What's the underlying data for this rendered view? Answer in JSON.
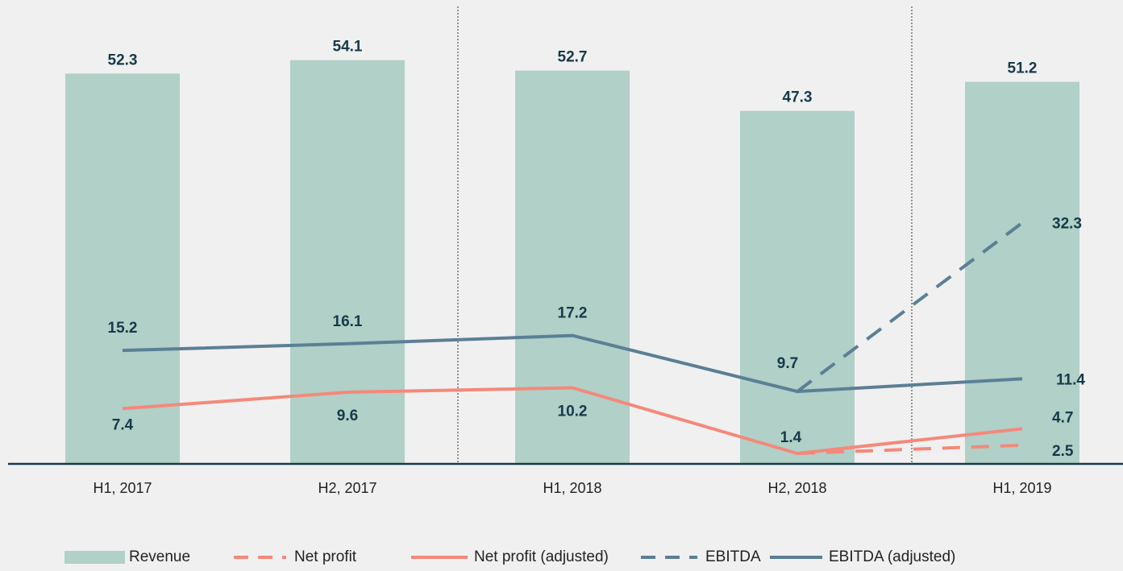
{
  "chart_data": {
    "type": "bar",
    "categories": [
      "H1, 2017",
      "H2, 2017",
      "H1, 2018",
      "H2, 2018",
      "H1, 2019"
    ],
    "ylim": [
      0,
      60
    ],
    "series": [
      {
        "name": "Revenue",
        "type": "bar",
        "color": "#b0d0c8",
        "values": [
          52.3,
          54.1,
          52.7,
          47.3,
          51.2
        ]
      },
      {
        "name": "Net profit",
        "type": "line",
        "dash": true,
        "color": "#f4897a",
        "values": [
          null,
          null,
          null,
          1.4,
          2.5
        ]
      },
      {
        "name": "Net profit (adjusted)",
        "type": "line",
        "dash": false,
        "color": "#f4897a",
        "values": [
          7.4,
          9.6,
          10.2,
          1.4,
          4.7
        ]
      },
      {
        "name": "EBITDA",
        "type": "line",
        "dash": true,
        "color": "#5b7f95",
        "values": [
          null,
          null,
          null,
          9.7,
          32.3
        ]
      },
      {
        "name": "EBITDA (adjusted)",
        "type": "line",
        "dash": false,
        "color": "#5b7f95",
        "values": [
          15.2,
          16.1,
          17.2,
          9.7,
          11.4
        ]
      }
    ]
  }
}
